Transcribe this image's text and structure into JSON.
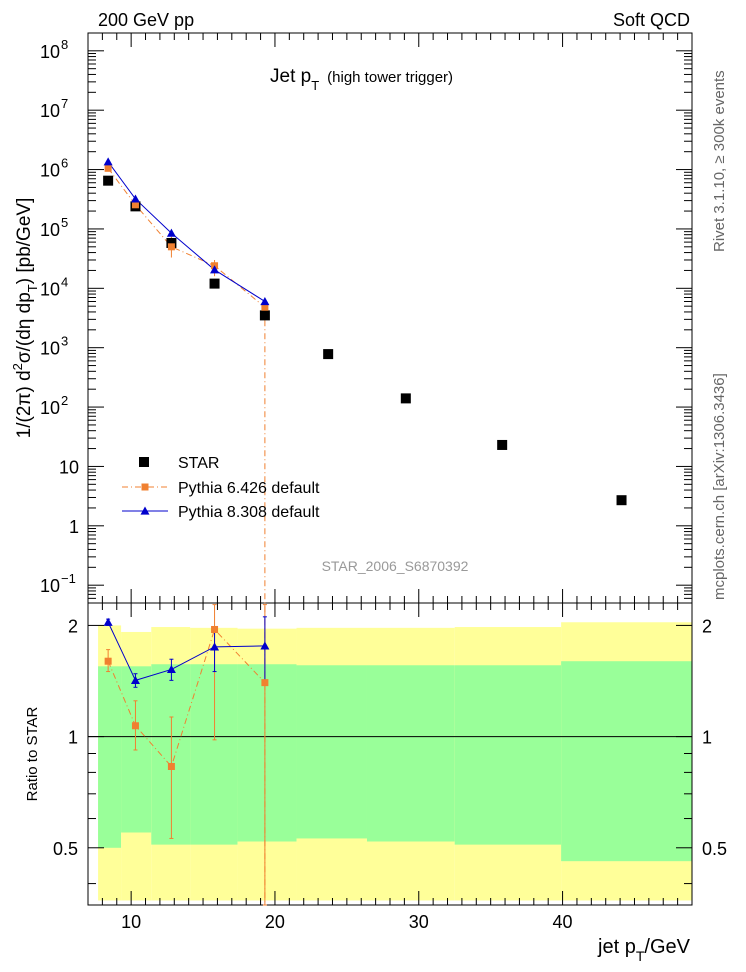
{
  "header": {
    "left": "200 GeV pp",
    "right": "Soft QCD"
  },
  "side_text": {
    "upper": "Rivet 3.1.10, ≥ 300k events",
    "lower": "mcplots.cern.ch [arXiv:1306.3436]"
  },
  "chart_data": {
    "type": "scatter",
    "title": {
      "main": "Jet p",
      "sub": "T",
      "suffix": "(high tower trigger)"
    },
    "watermark": "STAR_2006_S6870392",
    "ylabel": {
      "prefix": "1/(2π) d",
      "sup1": "2",
      "mid": "σ/(dη dp",
      "sub1": "T",
      "suffix": ") [pb/GeV]"
    },
    "xlabel": {
      "prefix": "jet p",
      "sub": "T",
      "suffix": "/GeV"
    },
    "xlim": [
      7,
      49
    ],
    "main_ylim_log10": [
      -1.3,
      8.3
    ],
    "ratio_ylabel": "Ratio to STAR",
    "ratio_ylim": [
      0.35,
      2.3
    ],
    "x_ticks": [
      10,
      20,
      30,
      40
    ],
    "x_tick_labels": [
      "10",
      "20",
      "30",
      "40"
    ],
    "y_ticks_main": [
      {
        "label": "10",
        "exp": "8",
        "v": 100000000.0
      },
      {
        "label": "10",
        "exp": "7",
        "v": 10000000.0
      },
      {
        "label": "10",
        "exp": "6",
        "v": 1000000.0
      },
      {
        "label": "10",
        "exp": "5",
        "v": 100000.0
      },
      {
        "label": "10",
        "exp": "4",
        "v": 10000.0
      },
      {
        "label": "10",
        "exp": "3",
        "v": 1000.0
      },
      {
        "label": "10",
        "exp": "2",
        "v": 100
      },
      {
        "label": "10",
        "exp": "",
        "v": 10
      },
      {
        "label": "1",
        "exp": "",
        "v": 1
      },
      {
        "label": "10",
        "exp": "−1",
        "v": 0.1
      }
    ],
    "ratio_ticks": [
      {
        "label": "2",
        "v": 2
      },
      {
        "label": "1",
        "v": 1
      },
      {
        "label": "0.5",
        "v": 0.5
      }
    ],
    "legend": [
      {
        "key": "star",
        "label": "STAR"
      },
      {
        "key": "py6",
        "label": "Pythia 6.426 default"
      },
      {
        "key": "py8",
        "label": "Pythia 8.308 default"
      }
    ],
    "colors": {
      "star": "#000000",
      "py6": "#f08030",
      "py8": "#0000cc",
      "band_outer": "#ffff99",
      "band_inner": "#99ff99"
    },
    "series": [
      {
        "name": "STAR",
        "x": [
          8.4,
          10.3,
          12.8,
          15.8,
          19.3,
          23.7,
          29.1,
          35.8,
          44.1
        ],
        "y": [
          650000,
          240000,
          58000,
          12000,
          3500,
          780,
          140,
          23,
          2.7
        ]
      },
      {
        "name": "Pythia 6.426 default",
        "x": [
          8.4,
          10.3,
          12.8,
          15.8,
          19.3
        ],
        "y": [
          1050000,
          255000,
          50000,
          24000,
          4800
        ],
        "ratio": [
          1.6,
          1.07,
          0.83,
          1.95,
          1.4
        ],
        "ratio_err_up": [
          0.12,
          0.18,
          0.3,
          0.35,
          0.9
        ],
        "ratio_err_down": [
          0.1,
          0.15,
          0.3,
          0.97,
          1.35
        ]
      },
      {
        "name": "Pythia 8.308 default",
        "x": [
          8.4,
          10.3,
          12.8,
          15.8,
          19.3
        ],
        "y": [
          1350000,
          320000,
          85000,
          20500,
          6000
        ],
        "ratio": [
          2.04,
          1.42,
          1.52,
          1.75,
          1.76
        ],
        "ratio_err_up": [
          0.04,
          0.06,
          0.1,
          0.2,
          0.35
        ],
        "ratio_err_down": [
          0.04,
          0.06,
          0.1,
          0.25,
          0.35
        ]
      }
    ],
    "ratio_bands": [
      {
        "x0": 7.7,
        "x1": 9.3,
        "inner": [
          0.5,
          1.55
        ],
        "outer": [
          0.36,
          2.0
        ]
      },
      {
        "x0": 9.3,
        "x1": 11.4,
        "inner": [
          0.55,
          1.55
        ],
        "outer": [
          0.36,
          1.92
        ]
      },
      {
        "x0": 11.4,
        "x1": 14.1,
        "inner": [
          0.51,
          1.57
        ],
        "outer": [
          0.36,
          1.98
        ]
      },
      {
        "x0": 14.1,
        "x1": 17.4,
        "inner": [
          0.51,
          1.57
        ],
        "outer": [
          0.36,
          1.97
        ]
      },
      {
        "x0": 17.4,
        "x1": 21.5,
        "inner": [
          0.52,
          1.57
        ],
        "outer": [
          0.36,
          1.96
        ]
      },
      {
        "x0": 21.5,
        "x1": 26.4,
        "inner": [
          0.53,
          1.56
        ],
        "outer": [
          0.36,
          1.97
        ]
      },
      {
        "x0": 26.4,
        "x1": 32.5,
        "inner": [
          0.52,
          1.56
        ],
        "outer": [
          0.36,
          1.97
        ]
      },
      {
        "x0": 32.5,
        "x1": 39.9,
        "inner": [
          0.51,
          1.56
        ],
        "outer": [
          0.36,
          1.98
        ]
      },
      {
        "x0": 39.9,
        "x1": 49.0,
        "inner": [
          0.46,
          1.6
        ],
        "outer": [
          0.36,
          2.04
        ]
      }
    ]
  }
}
